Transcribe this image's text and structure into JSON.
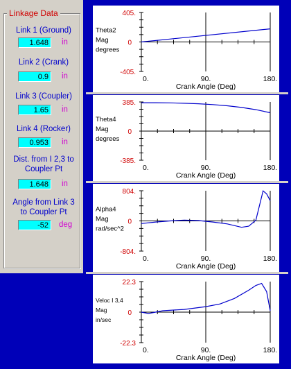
{
  "linkage_panel": {
    "title": "Linkage Data",
    "fields": [
      {
        "label": "Link 1 (Ground)",
        "value": "1.648",
        "unit": "in"
      },
      {
        "label": "Link 2 (Crank)",
        "value": "0.9",
        "unit": "in"
      },
      {
        "label": "Link 3 (Coupler)",
        "value": "1.65",
        "unit": "in"
      },
      {
        "label": "Link 4 (Rocker)",
        "value": "0.953",
        "unit": "in"
      },
      {
        "label": "Dist. from I 2,3 to Coupler Pt",
        "value": "1.648",
        "unit": "in"
      },
      {
        "label": "Angle from Link 3 to Coupler Pt",
        "value": "-52",
        "unit": "deg"
      }
    ]
  },
  "colors": {
    "panel_bg": "#d4d0c8",
    "frame": "#0000b8",
    "field_bg": "#00ffff",
    "label": "#0000cc",
    "unit": "#d000d0",
    "axis_value": "#d00000",
    "curve": "#0000cc"
  },
  "chart_data": [
    {
      "type": "line",
      "ylabel": [
        "Theta2",
        "Mag",
        "degrees"
      ],
      "xlabel": "Crank Angle (Deg)",
      "xlim": [
        0,
        180
      ],
      "x_ticks": [
        "0.",
        "90.",
        "180."
      ],
      "ylim": [
        -405,
        405
      ],
      "y_ticks": [
        "405.",
        "0",
        "-405."
      ],
      "x": [
        0,
        180
      ],
      "y": [
        0,
        180
      ]
    },
    {
      "type": "line",
      "ylabel": [
        "Theta4",
        "Mag",
        "degrees"
      ],
      "xlabel": "Crank Angle (Deg)",
      "xlim": [
        0,
        180
      ],
      "x_ticks": [
        "0.",
        "90.",
        "180."
      ],
      "ylim": [
        -385,
        385
      ],
      "y_ticks": [
        "385.",
        "0",
        "-385."
      ],
      "x": [
        0,
        20,
        40,
        60,
        80,
        100,
        120,
        140,
        160,
        180
      ],
      "y": [
        375,
        375,
        373,
        368,
        361,
        350,
        335,
        313,
        283,
        243
      ]
    },
    {
      "type": "line",
      "ylabel": [
        "Alpha4",
        "Mag",
        "rad/sec^2"
      ],
      "xlabel": "Crank Angle (Deg)",
      "xlim": [
        0,
        180
      ],
      "x_ticks": [
        "0.",
        "90.",
        "180."
      ],
      "ylim": [
        -804,
        804
      ],
      "y_ticks": [
        "804.",
        "0",
        "-804."
      ],
      "x": [
        0,
        20,
        40,
        60,
        80,
        100,
        120,
        140,
        150,
        160,
        170,
        175,
        180
      ],
      "y": [
        -70,
        -30,
        0,
        20,
        10,
        -30,
        -80,
        -170,
        -140,
        20,
        800,
        720,
        540
      ]
    },
    {
      "type": "line",
      "ylabel": [
        "Veloc I 3,4",
        "Mag",
        "in/sec"
      ],
      "xlabel": "Crank Angle (Deg)",
      "xlim": [
        0,
        180
      ],
      "x_ticks": [
        "0.",
        "90.",
        "180."
      ],
      "ylim": [
        -22.3,
        22.3
      ],
      "y_ticks": [
        "22.3",
        "0",
        "-22.3"
      ],
      "x": [
        0,
        10,
        30,
        60,
        90,
        110,
        130,
        150,
        160,
        168,
        175,
        180
      ],
      "y": [
        0,
        -1,
        1,
        2,
        4,
        6,
        10,
        16,
        19.5,
        21,
        15,
        1
      ]
    }
  ]
}
